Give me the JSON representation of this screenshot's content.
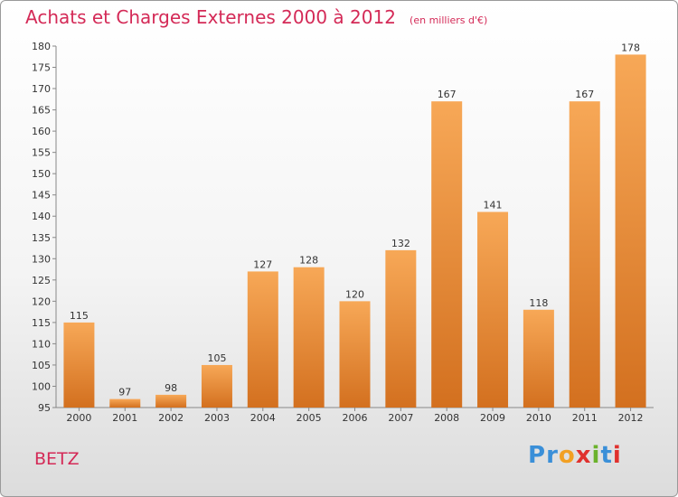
{
  "chart_data": {
    "type": "bar",
    "title": "Achats et Charges Externes 2000 à 2012",
    "subtitle": "(en milliers d'€)",
    "categories": [
      "2000",
      "2001",
      "2002",
      "2003",
      "2004",
      "2005",
      "2006",
      "2007",
      "2008",
      "2009",
      "2010",
      "2011",
      "2012"
    ],
    "values": [
      115,
      97,
      98,
      105,
      127,
      128,
      120,
      132,
      167,
      141,
      118,
      167,
      178
    ],
    "xlabel": "",
    "ylabel": "",
    "ylim": [
      95,
      180
    ],
    "yticks": [
      95,
      100,
      105,
      110,
      115,
      120,
      125,
      130,
      135,
      140,
      145,
      150,
      155,
      160,
      165,
      170,
      175,
      180
    ],
    "grid": false,
    "legend": "none",
    "bar_color_top": "#f7a857",
    "bar_color_bottom": "#d3701f"
  },
  "commune": "BETZ",
  "logo": {
    "letters": [
      {
        "ch": "P",
        "color": "#3a8fd8"
      },
      {
        "ch": "r",
        "color": "#3a8fd8"
      },
      {
        "ch": "o",
        "color": "#f2a023"
      },
      {
        "ch": "x",
        "color": "#e0312e"
      },
      {
        "ch": "i",
        "color": "#6bb22c"
      },
      {
        "ch": "t",
        "color": "#3a8fd8"
      },
      {
        "ch": "i",
        "color": "#e0312e"
      }
    ]
  }
}
